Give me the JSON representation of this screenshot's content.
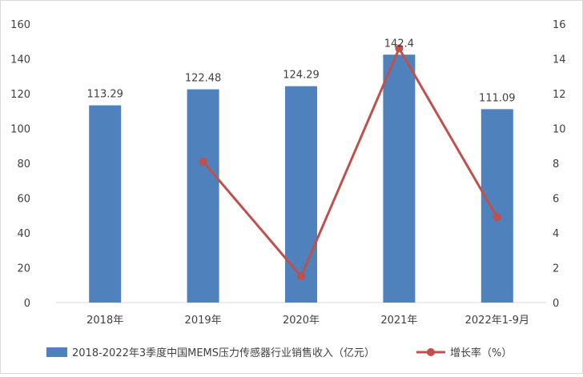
{
  "chart_data": {
    "type": "bar",
    "categories": [
      "2018年",
      "2019年",
      "2020年",
      "2021年",
      "2022年1-9月"
    ],
    "series": [
      {
        "name": "2018-2022年3季度中国MEMS压力传感器行业销售收入（亿元）",
        "type": "bar",
        "axis": "left",
        "color": "#4F81BD",
        "values": [
          113.29,
          122.48,
          124.29,
          142.4,
          111.09
        ],
        "data_labels": [
          "113.29",
          "122.48",
          "124.29",
          "142.4",
          "111.09"
        ]
      },
      {
        "name": "增长率（%）",
        "type": "line",
        "axis": "right",
        "color": "#C0504D",
        "points": [
          {
            "category": "2019年",
            "value": 8.1
          },
          {
            "category": "2020年",
            "value": 1.5
          },
          {
            "category": "2021年",
            "value": 14.6
          },
          {
            "category": "2022年1-9月",
            "value": 4.9
          }
        ]
      }
    ],
    "y_left": {
      "min": 0,
      "max": 160,
      "step": 20,
      "ticks": [
        "0",
        "20",
        "40",
        "60",
        "80",
        "100",
        "120",
        "140",
        "160"
      ]
    },
    "y_right": {
      "min": 0,
      "max": 16,
      "step": 2,
      "ticks": [
        "0",
        "2",
        "4",
        "6",
        "8",
        "10",
        "12",
        "14",
        "16"
      ]
    },
    "grid": false,
    "legend_position": "bottom"
  }
}
